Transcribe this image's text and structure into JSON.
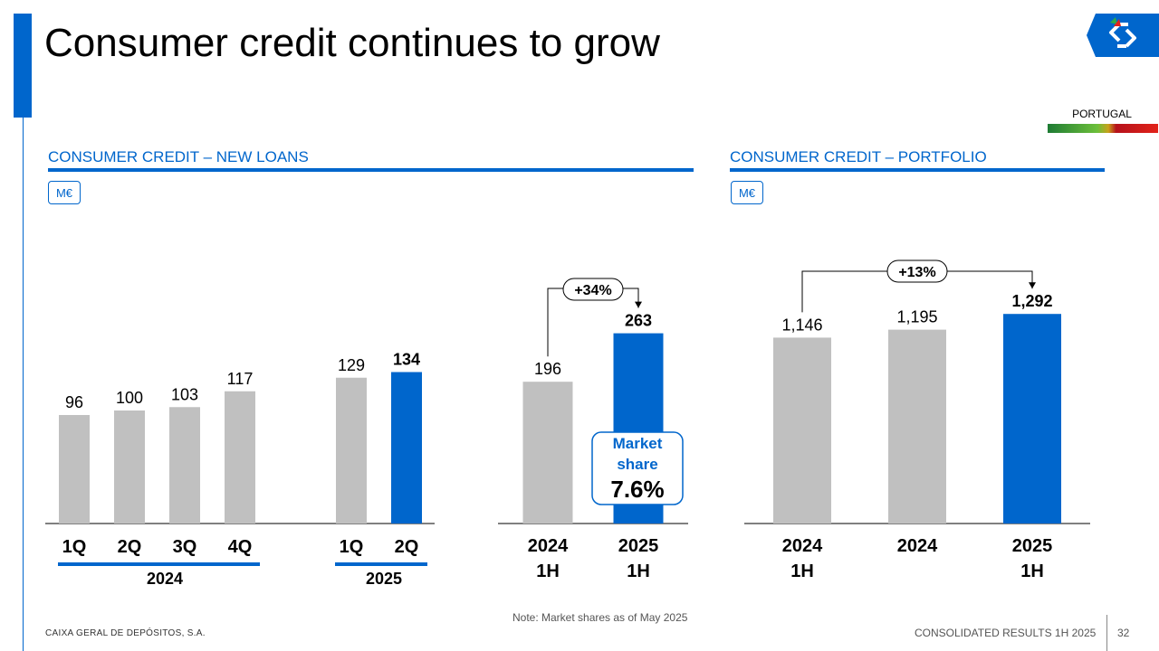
{
  "header": {
    "title": "Consumer credit continues to grow",
    "country": "PORTUGAL"
  },
  "colors": {
    "accent": "#0066cc",
    "bar_grey": "#c0c0c0",
    "bar_blue": "#0066cc"
  },
  "sections": {
    "new_loans": {
      "title": "CONSUMER CREDIT – NEW LOANS",
      "unit": "M€"
    },
    "portfolio": {
      "title": "CONSUMER CREDIT – PORTFOLIO",
      "unit": "M€"
    }
  },
  "footer": {
    "company": "CAIXA GERAL DE DEPÓSITOS, S.A.",
    "report": "CONSOLIDATED RESULTS 1H 2025",
    "page": "32",
    "note": "Note: Market shares as of May 2025"
  },
  "chart_data": [
    {
      "type": "bar",
      "categories": [
        "1Q",
        "2Q",
        "3Q",
        "4Q",
        "1Q",
        "2Q"
      ],
      "groups": [
        "2024",
        "2025"
      ],
      "values": [
        96,
        100,
        103,
        117,
        129,
        134
      ],
      "value_labels": [
        "96",
        "100",
        "103",
        "117",
        "129",
        "134"
      ],
      "highlight": [
        false,
        false,
        false,
        false,
        false,
        true
      ]
    },
    {
      "type": "bar",
      "categories": [
        "2024\n1H",
        "2025\n1H"
      ],
      "values": [
        196,
        263
      ],
      "value_labels": [
        "196",
        "263"
      ],
      "highlight": [
        false,
        true
      ],
      "growth_label": "+34%",
      "callout": {
        "label": "Market\nshare",
        "value": "7.6%"
      }
    },
    {
      "type": "bar",
      "categories": [
        "2024\n1H",
        "2024",
        "2025\n1H"
      ],
      "values": [
        1146,
        1195,
        1292
      ],
      "value_labels": [
        "1,146",
        "1,195",
        "1,292"
      ],
      "highlight": [
        false,
        false,
        true
      ],
      "growth_label": "+13%"
    }
  ]
}
